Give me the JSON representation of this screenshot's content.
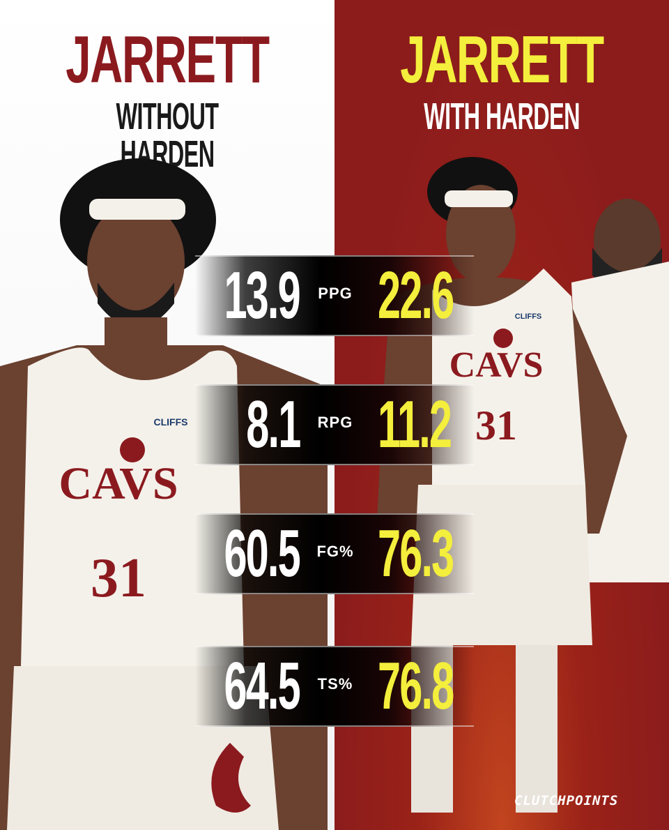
{
  "left": {
    "title": "JARRETT",
    "subtitle": "WITHOUT HARDEN",
    "title_color": "#8b1a1f",
    "subtitle_color": "#1a1a1a",
    "background": "#ffffff",
    "jersey_text": "CAVS",
    "jersey_number": "31",
    "sponsor": "CLIFFS"
  },
  "right": {
    "title": "JARRETT",
    "subtitle": "WITH HARDEN",
    "title_color": "#f4ee3c",
    "subtitle_color": "#ffffff",
    "background": "#8c1c1c",
    "jersey_text": "CAVS",
    "jersey_number": "31",
    "sponsor": "CLIFFS"
  },
  "stats": [
    {
      "label": "PPG",
      "without": "13.9",
      "with": "22.6"
    },
    {
      "label": "RPG",
      "without": "8.1",
      "with": "11.2"
    },
    {
      "label": "FG%",
      "without": "60.5",
      "with": "76.3"
    },
    {
      "label": "TS%",
      "without": "64.5",
      "with": "76.8"
    }
  ],
  "brand": "CLUTCHPOINTS"
}
